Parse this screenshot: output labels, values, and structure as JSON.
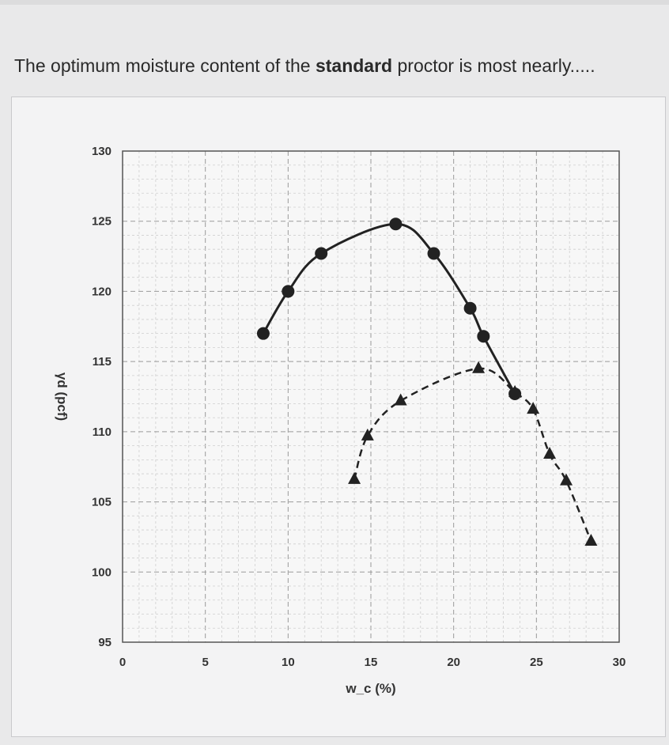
{
  "question": {
    "prefix": "The optimum moisture content of the ",
    "emphasis": "standard",
    "suffix": " proctor is most nearly....."
  },
  "chart_data": {
    "type": "line",
    "title": "",
    "xlabel": "w_c (%)",
    "ylabel": "γd (pcf)",
    "xlim": [
      0,
      30
    ],
    "ylim": [
      95,
      130
    ],
    "x_ticks": [
      "0",
      "5",
      "10",
      "15",
      "20",
      "25",
      "30"
    ],
    "y_ticks": [
      "95",
      "100",
      "105",
      "110",
      "115",
      "120",
      "125",
      "130"
    ],
    "grid": true,
    "series": [
      {
        "marker": "circle",
        "line_style": "solid",
        "color": "#222222",
        "points": [
          [
            8.5,
            117.0
          ],
          [
            10.0,
            120.0
          ],
          [
            12.0,
            122.7
          ],
          [
            16.5,
            124.8
          ],
          [
            18.8,
            122.7
          ],
          [
            21.0,
            118.8
          ],
          [
            21.8,
            116.8
          ],
          [
            23.7,
            112.7
          ]
        ]
      },
      {
        "marker": "triangle",
        "line_style": "dashed",
        "color": "#222222",
        "points": [
          [
            14.0,
            106.6
          ],
          [
            14.8,
            109.7
          ],
          [
            16.8,
            112.2
          ],
          [
            21.5,
            114.5
          ],
          [
            23.7,
            112.8
          ],
          [
            24.8,
            111.6
          ],
          [
            25.8,
            108.4
          ],
          [
            26.8,
            106.5
          ],
          [
            28.3,
            102.2
          ]
        ]
      }
    ]
  }
}
